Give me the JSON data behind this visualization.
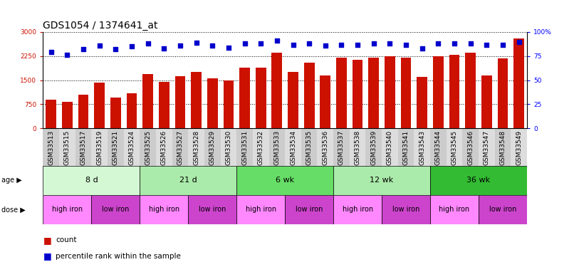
{
  "title": "GDS1054 / 1374641_at",
  "samples": [
    "GSM33513",
    "GSM33515",
    "GSM33517",
    "GSM33519",
    "GSM33521",
    "GSM33524",
    "GSM33525",
    "GSM33526",
    "GSM33527",
    "GSM33528",
    "GSM33529",
    "GSM33530",
    "GSM33531",
    "GSM33532",
    "GSM33533",
    "GSM33534",
    "GSM33535",
    "GSM33536",
    "GSM33537",
    "GSM33538",
    "GSM33539",
    "GSM33540",
    "GSM33541",
    "GSM33543",
    "GSM33544",
    "GSM33545",
    "GSM33546",
    "GSM33547",
    "GSM33548",
    "GSM33549"
  ],
  "counts": [
    900,
    830,
    1050,
    1430,
    950,
    1100,
    1700,
    1450,
    1620,
    1750,
    1550,
    1500,
    1900,
    1900,
    2350,
    1750,
    2050,
    1650,
    2200,
    2130,
    2200,
    2250,
    2200,
    1600,
    2250,
    2300,
    2350,
    1650,
    2170,
    2800
  ],
  "percentile_ranks": [
    79,
    76,
    82,
    86,
    82,
    85,
    88,
    83,
    86,
    89,
    86,
    84,
    88,
    88,
    91,
    87,
    88,
    86,
    87,
    87,
    88,
    88,
    87,
    83,
    88,
    88,
    88,
    87,
    87,
    90
  ],
  "age_groups": [
    {
      "label": "8 d",
      "start": 0,
      "end": 6,
      "color": "#d4f7d4"
    },
    {
      "label": "21 d",
      "start": 6,
      "end": 12,
      "color": "#aaeaaa"
    },
    {
      "label": "6 wk",
      "start": 12,
      "end": 18,
      "color": "#66dd66"
    },
    {
      "label": "12 wk",
      "start": 18,
      "end": 24,
      "color": "#aaeaaa"
    },
    {
      "label": "36 wk",
      "start": 24,
      "end": 30,
      "color": "#33bb33"
    }
  ],
  "dose_groups": [
    {
      "label": "high iron",
      "start": 0,
      "end": 3,
      "color": "#ff88ff"
    },
    {
      "label": "low iron",
      "start": 3,
      "end": 6,
      "color": "#cc44cc"
    },
    {
      "label": "high iron",
      "start": 6,
      "end": 9,
      "color": "#ff88ff"
    },
    {
      "label": "low iron",
      "start": 9,
      "end": 12,
      "color": "#cc44cc"
    },
    {
      "label": "high iron",
      "start": 12,
      "end": 15,
      "color": "#ff88ff"
    },
    {
      "label": "low iron",
      "start": 15,
      "end": 18,
      "color": "#cc44cc"
    },
    {
      "label": "high iron",
      "start": 18,
      "end": 21,
      "color": "#ff88ff"
    },
    {
      "label": "low iron",
      "start": 21,
      "end": 24,
      "color": "#cc44cc"
    },
    {
      "label": "high iron",
      "start": 24,
      "end": 27,
      "color": "#ff88ff"
    },
    {
      "label": "low iron",
      "start": 27,
      "end": 30,
      "color": "#cc44cc"
    }
  ],
  "ylim_left": [
    0,
    3000
  ],
  "ylim_right": [
    0,
    100
  ],
  "yticks_left": [
    0,
    750,
    1500,
    2250,
    3000
  ],
  "yticks_right": [
    0,
    25,
    50,
    75,
    100
  ],
  "bar_color": "#cc1100",
  "dot_color": "#0000cc",
  "bar_width": 0.65,
  "title_fontsize": 10,
  "tick_fontsize": 6.5,
  "label_fontsize": 8,
  "age_label": "age ▶",
  "dose_label": "dose ▶",
  "xtick_bg_colors": [
    "#cccccc",
    "#dddddd"
  ]
}
